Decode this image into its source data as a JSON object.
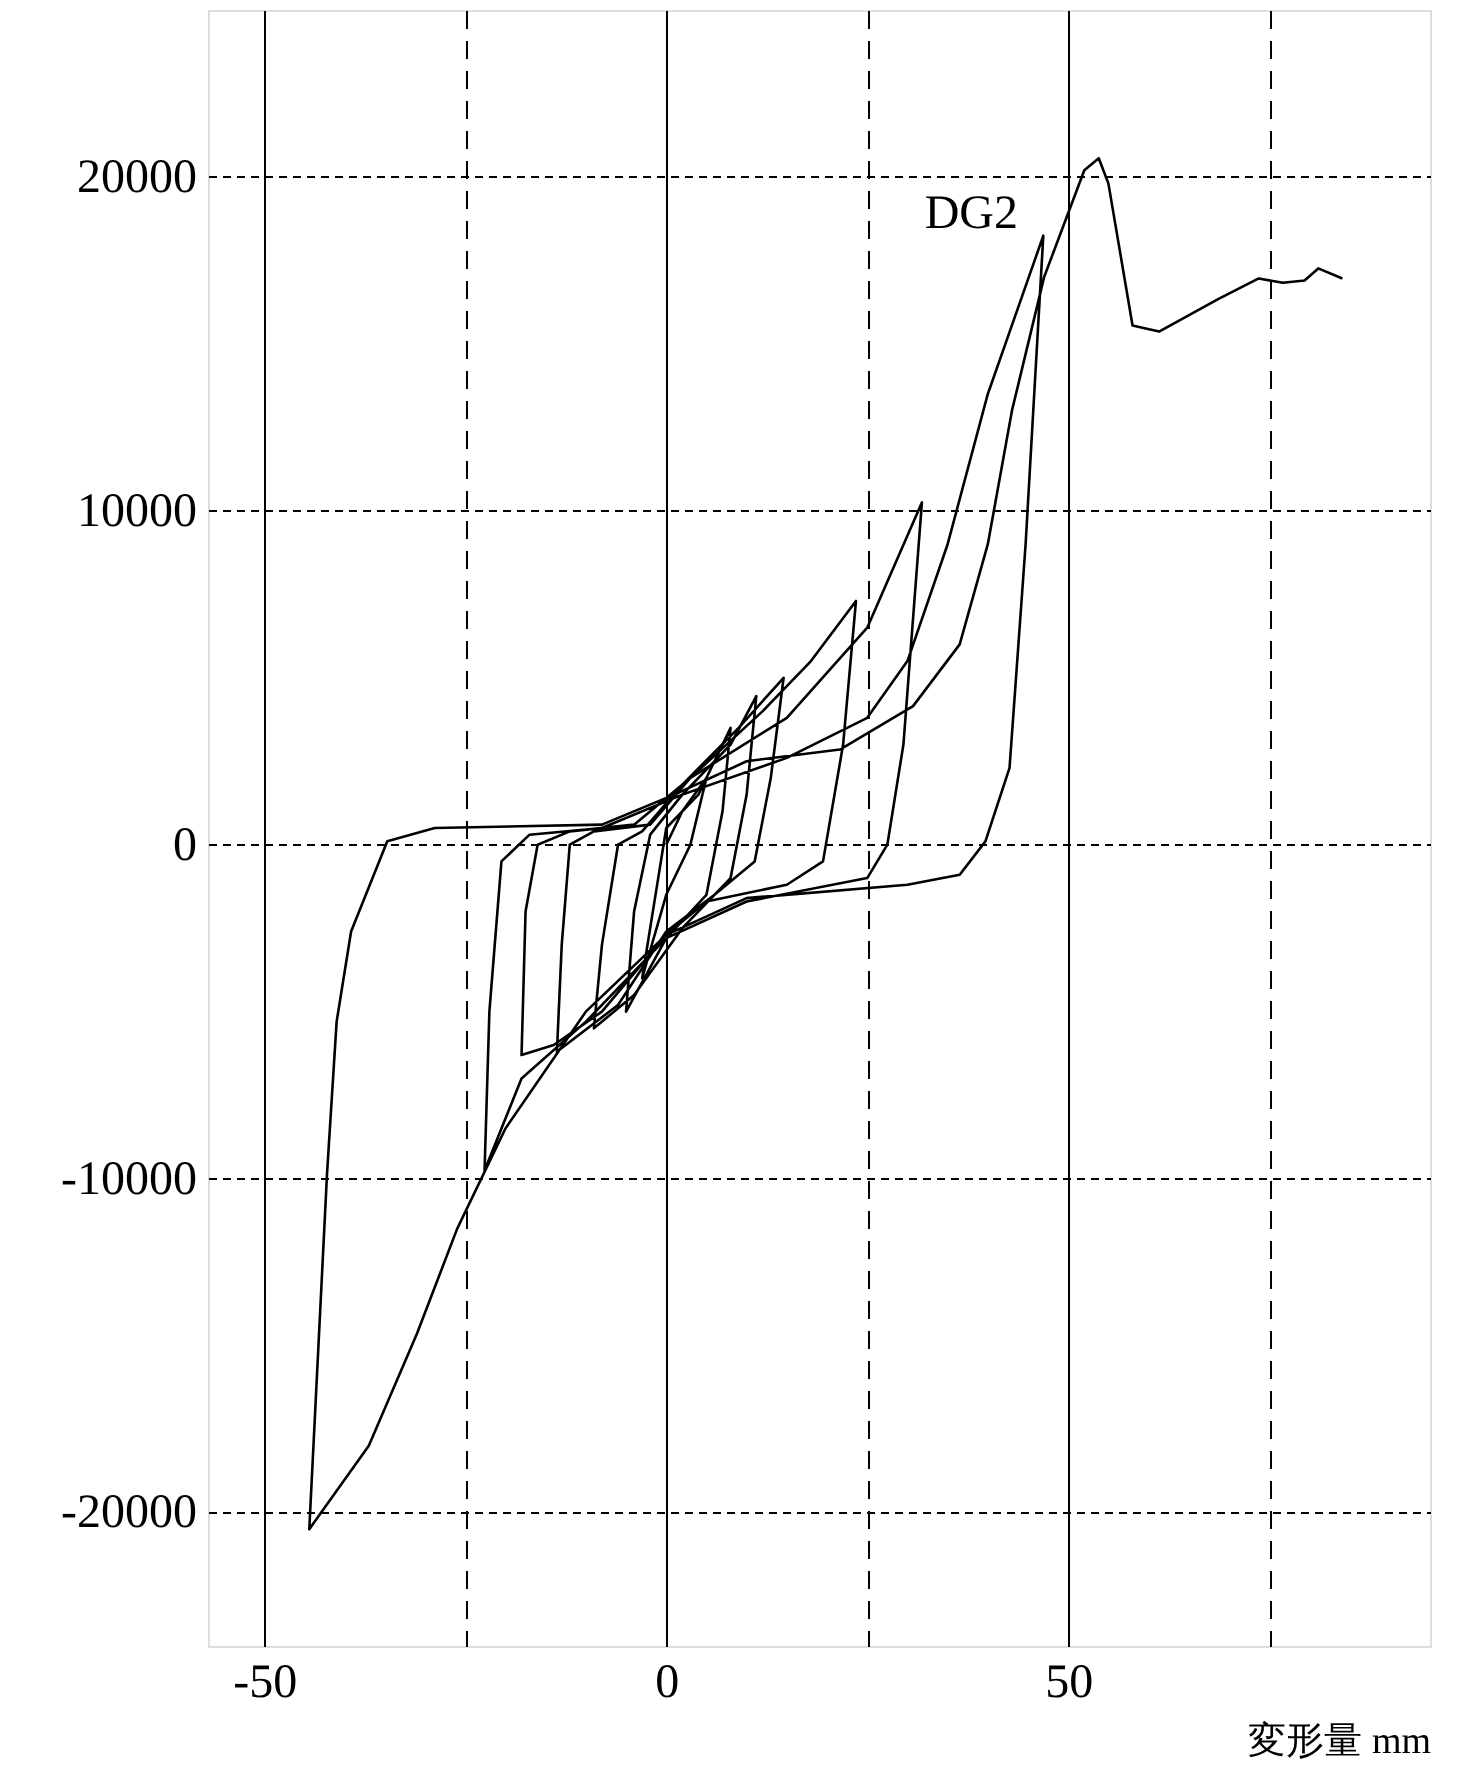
{
  "chart_data": {
    "type": "line",
    "xlabel": "変形量  mm",
    "xlim": [
      -57,
      95
    ],
    "ylim": [
      -24000,
      25000
    ],
    "xticks": [
      -50,
      {
        "value": -25,
        "label": null
      },
      0,
      {
        "value": 25,
        "label": null
      },
      50,
      {
        "value": 75,
        "label": null
      }
    ],
    "yticks": [
      -20000,
      -10000,
      0,
      10000,
      20000
    ],
    "grid": true,
    "marker": "none",
    "line_style": "solid",
    "annotations": [
      "DG2"
    ],
    "series": [
      {
        "color": "#000000",
        "x": [
          0,
          2,
          5,
          3,
          0,
          -3,
          -1,
          0,
          4,
          8,
          7,
          5,
          0,
          -5,
          -4,
          -2,
          2,
          8,
          11.2,
          10,
          8,
          2,
          -4,
          -9,
          -8,
          -6,
          -3,
          2,
          9,
          14.6,
          13,
          11,
          6,
          0,
          -6,
          -13.6,
          -13,
          -12,
          -9,
          -2,
          3,
          12,
          18,
          23.6,
          22,
          19.5,
          15,
          5,
          0,
          -8,
          -14,
          -18,
          -17.5,
          -16,
          -12,
          -4,
          3,
          15,
          25,
          31.8,
          29.5,
          27.5,
          25,
          10,
          0,
          -10,
          -18,
          -22.6,
          -22,
          -20.5,
          -17,
          -8,
          2,
          15,
          25,
          30,
          35,
          40,
          46.9,
          44.7,
          42.7,
          39.7,
          36.5,
          30,
          10,
          0,
          -10,
          -20,
          -26,
          -31,
          -37,
          -44.4,
          -42.2,
          -41,
          -39.2,
          -34.7,
          -28.8,
          -8,
          1,
          10,
          21.6,
          30.7,
          36.5,
          40,
          43,
          47,
          52,
          53.8,
          55,
          58,
          61.3,
          68.7,
          73.7,
          76.7,
          79.4,
          81.1,
          84.1
        ],
        "values": [
          0,
          1000,
          2000,
          0,
          -1500,
          -4000,
          -1000,
          500,
          1500,
          3500,
          1000,
          -1500,
          -2800,
          -5000,
          -2000,
          300,
          1500,
          3000,
          4450,
          1500,
          -1000,
          -2500,
          -4500,
          -5500,
          -3000,
          0,
          400,
          1800,
          3500,
          5000,
          2000,
          -500,
          -1500,
          -2600,
          -4800,
          -6200,
          -3000,
          0,
          400,
          600,
          2000,
          4000,
          5500,
          7300,
          3000,
          -500,
          -1200,
          -1700,
          -2700,
          -5000,
          -6000,
          -6300,
          -2000,
          0,
          400,
          600,
          2000,
          3800,
          6500,
          10250,
          3000,
          0,
          -1000,
          -1700,
          -2800,
          -5300,
          -7000,
          -9760,
          -5000,
          -500,
          300,
          500,
          1500,
          2600,
          3800,
          5500,
          9000,
          13500,
          18240,
          9000,
          2300,
          100,
          -900,
          -1200,
          -1600,
          -2700,
          -5000,
          -8500,
          -11500,
          -14640,
          -18000,
          -20500,
          -9880,
          -5300,
          -2600,
          100,
          500,
          600,
          1500,
          2500,
          2850,
          4150,
          6000,
          9000,
          13000,
          17000,
          20200,
          20560,
          19800,
          15550,
          15370,
          16350,
          16960,
          16830,
          16900,
          17260,
          16960
        ]
      }
    ]
  }
}
